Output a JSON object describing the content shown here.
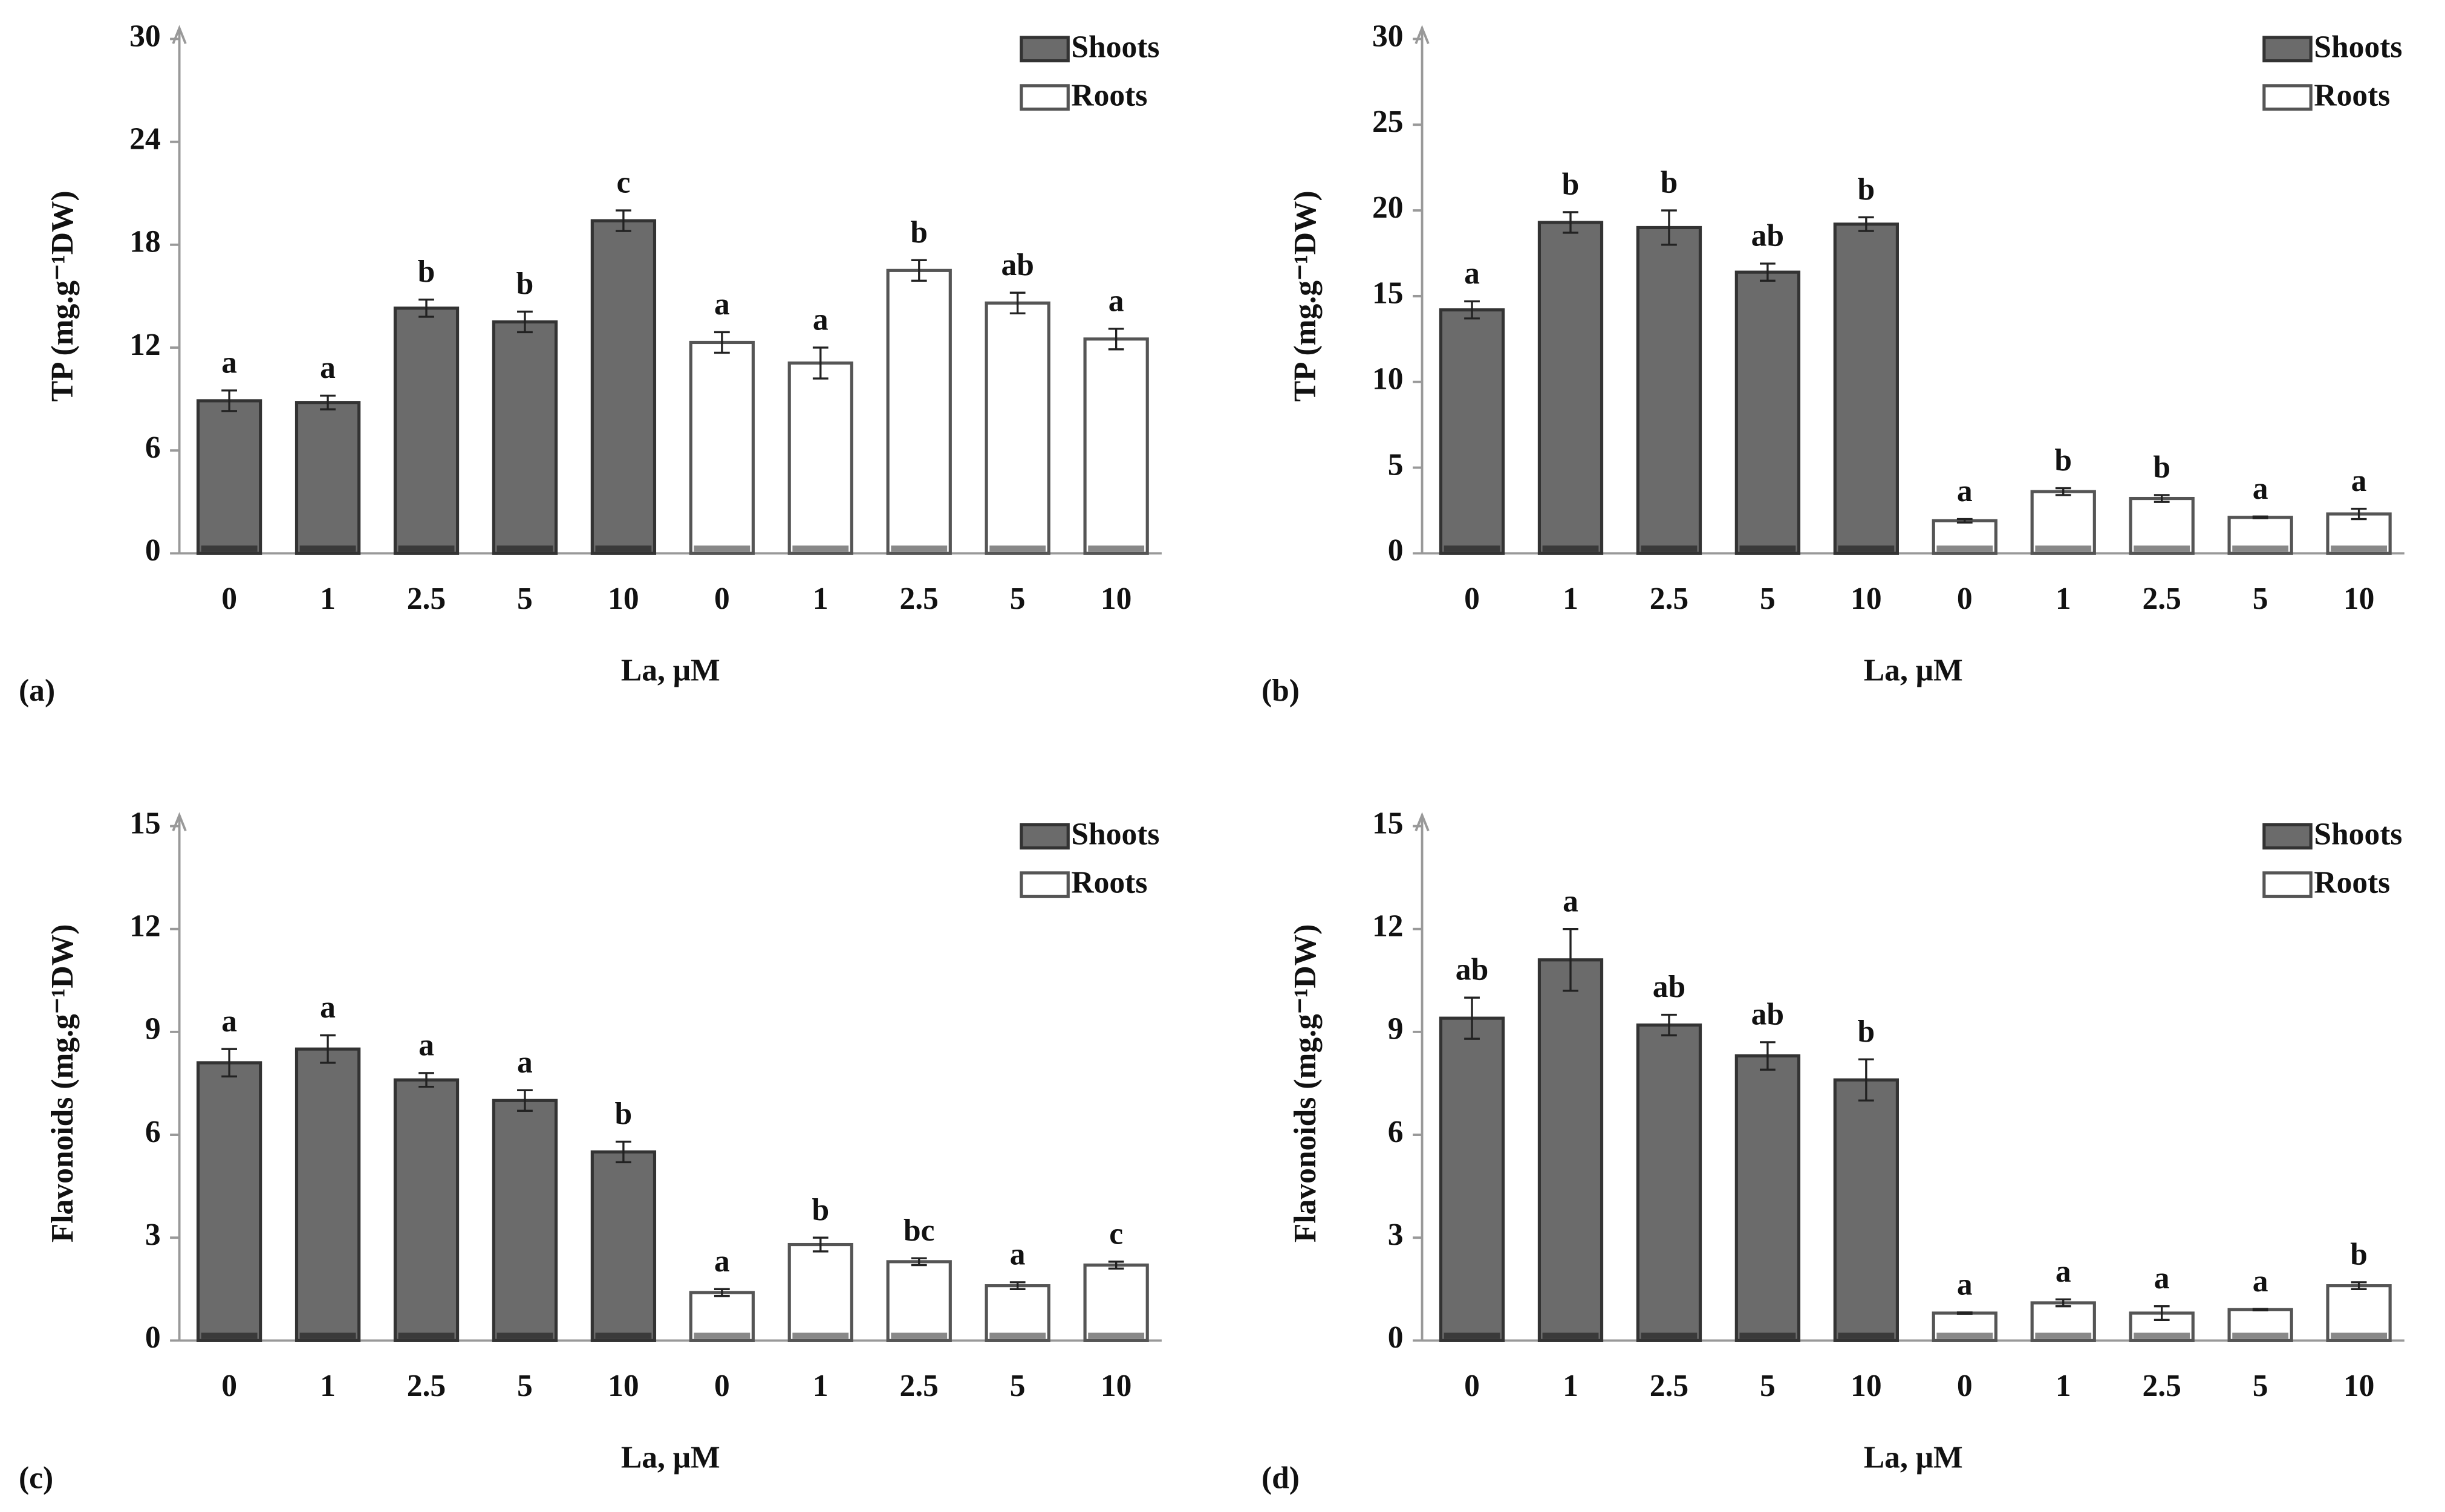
{
  "chart_data": [
    {
      "type": "bar",
      "panel_label": "(a)",
      "y_label": "TP (mg.g⁻¹DW)",
      "x_label": "La, μM",
      "categories": [
        "0",
        "1",
        "2.5",
        "5",
        "10",
        "0",
        "1",
        "2.5",
        "5",
        "10"
      ],
      "ylim": [
        0,
        30
      ],
      "yticks": [
        0,
        6,
        12,
        18,
        24,
        30
      ],
      "legend": "top-right",
      "series": [
        {
          "name": "Shoots",
          "color": "#6b6b6b",
          "values": [
            8.9,
            8.8,
            14.3,
            13.5,
            19.4,
            null,
            null,
            null,
            null,
            null
          ],
          "errors": [
            0.6,
            0.4,
            0.5,
            0.6,
            0.6,
            null,
            null,
            null,
            null,
            null
          ],
          "letters": [
            "a",
            "a",
            "b",
            "b",
            "c",
            null,
            null,
            null,
            null,
            null
          ]
        },
        {
          "name": "Roots",
          "color": "#ffffff",
          "values": [
            null,
            null,
            null,
            null,
            null,
            12.3,
            11.1,
            16.5,
            14.6,
            12.5
          ],
          "errors": [
            null,
            null,
            null,
            null,
            null,
            0.6,
            0.9,
            0.6,
            0.6,
            0.6
          ],
          "letters": [
            null,
            null,
            null,
            null,
            null,
            "a",
            "a",
            "b",
            "ab",
            "a"
          ]
        }
      ]
    },
    {
      "type": "bar",
      "panel_label": "(b)",
      "y_label": "TP (mg.g⁻¹DW)",
      "x_label": "La, μM",
      "categories": [
        "0",
        "1",
        "2.5",
        "5",
        "10",
        "0",
        "1",
        "2.5",
        "5",
        "10"
      ],
      "ylim": [
        0,
        30
      ],
      "yticks": [
        0,
        5,
        10,
        15,
        20,
        25,
        30
      ],
      "legend": "top-right",
      "series": [
        {
          "name": "Shoots",
          "color": "#6b6b6b",
          "values": [
            14.2,
            19.3,
            19.0,
            16.4,
            19.2,
            null,
            null,
            null,
            null,
            null
          ],
          "errors": [
            0.5,
            0.6,
            1.0,
            0.5,
            0.4,
            null,
            null,
            null,
            null,
            null
          ],
          "letters": [
            "a",
            "b",
            "b",
            "ab",
            "b",
            null,
            null,
            null,
            null,
            null
          ]
        },
        {
          "name": "Roots",
          "color": "#ffffff",
          "values": [
            null,
            null,
            null,
            null,
            null,
            1.9,
            3.6,
            3.2,
            2.1,
            2.3
          ],
          "errors": [
            null,
            null,
            null,
            null,
            null,
            0.1,
            0.2,
            0.2,
            0.05,
            0.3
          ],
          "letters": [
            null,
            null,
            null,
            null,
            null,
            "a",
            "b",
            "b",
            "a",
            "a"
          ]
        }
      ]
    },
    {
      "type": "bar",
      "panel_label": "(c)",
      "y_label": "Flavonoids (mg.g⁻¹DW)",
      "x_label": "La, μM",
      "categories": [
        "0",
        "1",
        "2.5",
        "5",
        "10",
        "0",
        "1",
        "2.5",
        "5",
        "10"
      ],
      "ylim": [
        0,
        15
      ],
      "yticks": [
        0,
        3,
        6,
        9,
        12,
        15
      ],
      "legend": "top-right",
      "series": [
        {
          "name": "Shoots",
          "color": "#6b6b6b",
          "values": [
            8.1,
            8.5,
            7.6,
            7.0,
            5.5,
            null,
            null,
            null,
            null,
            null
          ],
          "errors": [
            0.4,
            0.4,
            0.2,
            0.3,
            0.3,
            null,
            null,
            null,
            null,
            null
          ],
          "letters": [
            "a",
            "a",
            "a",
            "a",
            "b",
            null,
            null,
            null,
            null,
            null
          ]
        },
        {
          "name": "Roots",
          "color": "#ffffff",
          "values": [
            null,
            null,
            null,
            null,
            null,
            1.4,
            2.8,
            2.3,
            1.6,
            2.2
          ],
          "errors": [
            null,
            null,
            null,
            null,
            null,
            0.1,
            0.2,
            0.1,
            0.1,
            0.1
          ],
          "letters": [
            null,
            null,
            null,
            null,
            null,
            "a",
            "b",
            "bc",
            "a",
            "c"
          ]
        }
      ]
    },
    {
      "type": "bar",
      "panel_label": "(d)",
      "y_label": "Flavonoids (mg.g⁻¹DW)",
      "x_label": "La, μM",
      "categories": [
        "0",
        "1",
        "2.5",
        "5",
        "10",
        "0",
        "1",
        "2.5",
        "5",
        "10"
      ],
      "ylim": [
        0,
        15
      ],
      "yticks": [
        0,
        3,
        6,
        9,
        12,
        15
      ],
      "legend": "top-right",
      "series": [
        {
          "name": "Shoots",
          "color": "#6b6b6b",
          "values": [
            9.4,
            11.1,
            9.2,
            8.3,
            7.6,
            null,
            null,
            null,
            null,
            null
          ],
          "errors": [
            0.6,
            0.9,
            0.3,
            0.4,
            0.6,
            null,
            null,
            null,
            null,
            null
          ],
          "letters": [
            "ab",
            "a",
            "ab",
            "ab",
            "b",
            null,
            null,
            null,
            null,
            null
          ]
        },
        {
          "name": "Roots",
          "color": "#ffffff",
          "values": [
            null,
            null,
            null,
            null,
            null,
            0.8,
            1.1,
            0.8,
            0.9,
            1.6
          ],
          "errors": [
            null,
            null,
            null,
            null,
            null,
            0.02,
            0.1,
            0.2,
            0.02,
            0.1
          ],
          "letters": [
            null,
            null,
            null,
            null,
            null,
            "a",
            "a",
            "a",
            "a",
            "b"
          ]
        }
      ]
    }
  ]
}
